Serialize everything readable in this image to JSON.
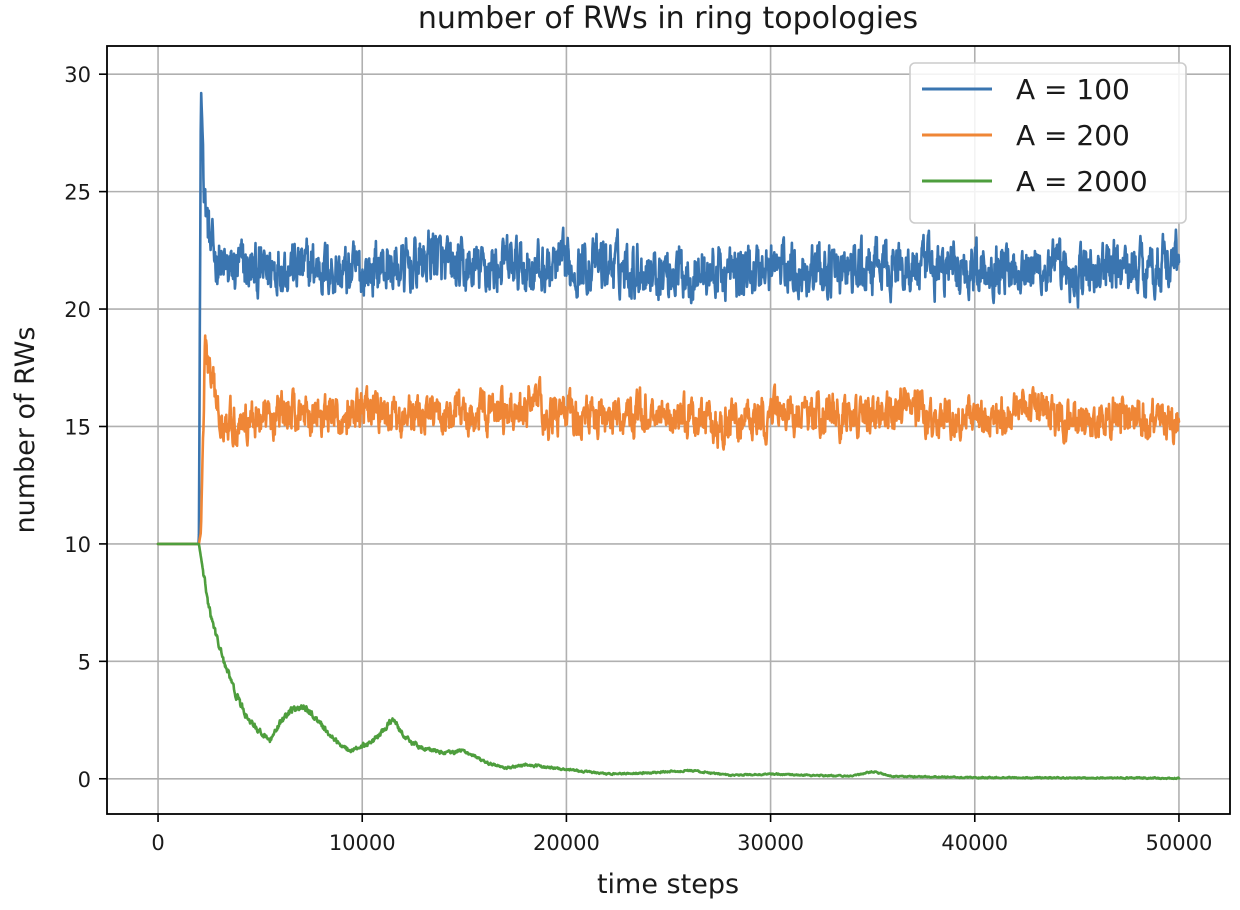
{
  "chart_data": {
    "type": "line",
    "title": "number of RWs in ring topologies",
    "xlabel": "time steps",
    "ylabel": "number of RWs",
    "xlim": [
      -2500,
      52500
    ],
    "ylim": [
      -1.5,
      31.2
    ],
    "xticks": [
      0,
      10000,
      20000,
      30000,
      40000,
      50000
    ],
    "yticks": [
      0,
      5,
      10,
      15,
      20,
      25,
      30
    ],
    "grid": true,
    "legend_position": "top-right",
    "series": [
      {
        "name": "A = 100",
        "color": "#3a75b0",
        "x": [
          0,
          2000,
          2100,
          2300,
          2600,
          3000,
          3500,
          4000,
          5000,
          6000,
          7000,
          8000,
          9000,
          10000,
          11000,
          12000,
          13000,
          13500,
          14000,
          15000,
          16000,
          17000,
          18000,
          19000,
          20000,
          22000,
          24000,
          26000,
          28000,
          30000,
          32000,
          34000,
          36000,
          38000,
          40000,
          42000,
          44000,
          44500,
          46000,
          48000,
          50000
        ],
        "values": [
          10,
          10,
          29.5,
          24.5,
          22.5,
          22.0,
          21.5,
          21.8,
          21.5,
          22.0,
          21.7,
          21.8,
          21.5,
          21.6,
          21.8,
          21.7,
          22.0,
          22.5,
          21.8,
          21.6,
          21.7,
          21.9,
          21.8,
          21.7,
          21.8,
          21.9,
          21.7,
          21.6,
          21.5,
          21.8,
          21.7,
          21.6,
          21.8,
          21.7,
          21.8,
          21.9,
          21.6,
          21.3,
          21.7,
          21.8,
          22.0
        ],
        "noise": 1.25
      },
      {
        "name": "A = 200",
        "color": "#ef8636",
        "x": [
          0,
          2000,
          2100,
          2300,
          2600,
          3000,
          4000,
          5000,
          6000,
          7000,
          8000,
          9000,
          10000,
          11000,
          12000,
          14000,
          16000,
          18000,
          18300,
          19000,
          20000,
          22000,
          24000,
          26000,
          27500,
          28000,
          30000,
          32000,
          34000,
          36000,
          36600,
          38000,
          40000,
          42000,
          42200,
          44000,
          46000,
          48000,
          50000
        ],
        "values": [
          10,
          10,
          10.5,
          18.5,
          17.0,
          15.5,
          15.2,
          15.4,
          15.5,
          15.7,
          15.5,
          15.4,
          15.6,
          15.5,
          15.3,
          15.5,
          15.6,
          15.5,
          16.5,
          15.4,
          15.5,
          15.4,
          15.6,
          15.4,
          14.8,
          15.2,
          15.5,
          15.6,
          15.4,
          15.5,
          16.0,
          15.3,
          15.4,
          15.5,
          16.2,
          15.4,
          15.5,
          15.3,
          15.2
        ],
        "noise": 0.95
      },
      {
        "name": "A = 2000",
        "color": "#4e9e3d",
        "x": [
          0,
          2000,
          2500,
          3000,
          3500,
          4000,
          4500,
          5000,
          5500,
          6000,
          6500,
          7000,
          7500,
          8000,
          8500,
          9000,
          9500,
          10000,
          10500,
          11000,
          11500,
          12000,
          12500,
          13000,
          14000,
          15000,
          16000,
          17000,
          18000,
          19000,
          20000,
          22000,
          24000,
          26000,
          28000,
          30000,
          32000,
          34000,
          35000,
          36000,
          38000,
          40000,
          42000,
          44000,
          46000,
          48000,
          50000
        ],
        "values": [
          10,
          10,
          7.2,
          5.6,
          4.3,
          3.2,
          2.4,
          2.0,
          1.6,
          2.4,
          2.9,
          3.1,
          2.8,
          2.3,
          1.8,
          1.4,
          1.2,
          1.4,
          1.6,
          2.0,
          2.6,
          1.9,
          1.5,
          1.3,
          1.1,
          1.2,
          0.7,
          0.45,
          0.6,
          0.5,
          0.4,
          0.2,
          0.25,
          0.35,
          0.15,
          0.2,
          0.15,
          0.12,
          0.3,
          0.1,
          0.08,
          0.05,
          0.05,
          0.04,
          0.03,
          0.03,
          0.02
        ],
        "noise": 0.12
      }
    ]
  }
}
